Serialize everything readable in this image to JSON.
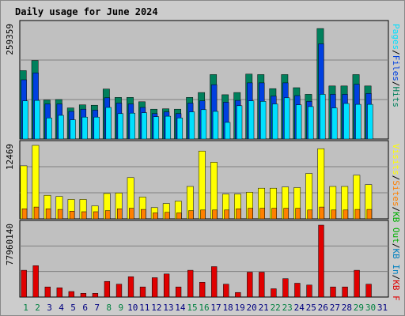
{
  "chart_data": {
    "type": "bar",
    "title": "Daily usage for June 2024",
    "categories": [
      "1",
      "2",
      "3",
      "4",
      "5",
      "6",
      "7",
      "8",
      "9",
      "10",
      "11",
      "12",
      "13",
      "14",
      "15",
      "16",
      "17",
      "18",
      "19",
      "20",
      "21",
      "22",
      "23",
      "24",
      "25",
      "26",
      "27",
      "28",
      "29",
      "30",
      "31"
    ],
    "weekend_days": [
      "1",
      "2",
      "8",
      "9",
      "15",
      "16",
      "22",
      "23",
      "29",
      "30"
    ],
    "colors": {
      "title": "#0000cc",
      "hits": "#00805c",
      "files": "#0040e0",
      "pages": "#00e0ff",
      "visits": "#ffff00",
      "sites": "#ff8000",
      "kb_in": "#0080c0",
      "kb_out": "#00b000",
      "kbytes": "#e00000",
      "weekday_label": "#000080",
      "weekend_label": "#008040",
      "plot_bg": "#c0c0c0",
      "frame_bg": "#cccccc",
      "grid": "#808080"
    },
    "panels": {
      "top": {
        "ymax_label": "259359",
        "ymax": 259359,
        "legend": [
          "Pages",
          "/",
          "Files",
          "/",
          "Hits"
        ],
        "series": [
          {
            "name": "Hits",
            "values": [
              156000,
              179000,
              89000,
              90000,
              71000,
              78000,
              77000,
              114000,
              95000,
              95000,
              85000,
              68000,
              69000,
              68000,
              95000,
              106000,
              147000,
              101000,
              106000,
              148000,
              147000,
              115000,
              147000,
              117000,
              102000,
              252000,
              121000,
              121000,
              147000,
              121000,
              0
            ]
          },
          {
            "name": "Files",
            "values": [
              135000,
              151000,
              80000,
              80000,
              63000,
              68000,
              66000,
              94000,
              82000,
              80000,
              72000,
              58000,
              62000,
              58000,
              82000,
              87000,
              124000,
              84000,
              88000,
              128000,
              128000,
              98000,
              128000,
              99000,
              86000,
              217000,
              102000,
              102000,
              125000,
              104000,
              0
            ]
          },
          {
            "name": "Pages",
            "values": [
              87000,
              88000,
              48000,
              54000,
              44000,
              50000,
              50000,
              72000,
              58000,
              59000,
              60000,
              51000,
              52000,
              48000,
              62000,
              67000,
              63000,
              38000,
              76000,
              87000,
              86000,
              80000,
              94000,
              78000,
              74000,
              102000,
              71000,
              81000,
              79000,
              79000,
              0
            ]
          }
        ]
      },
      "middle": {
        "ymax_label": "12469",
        "ymax": 12469,
        "legend": [
          "Visits",
          "/",
          "Sites",
          "/",
          "KB Out",
          "/",
          "KB In",
          "/",
          "KB F"
        ],
        "series": [
          {
            "name": "Visits",
            "values": [
              9000,
              12469,
              4000,
              3800,
              3300,
              3300,
              2200,
              4300,
              4400,
              7000,
              3700,
              1900,
              2600,
              3000,
              5500,
              11500,
              9600,
              4200,
              4200,
              4500,
              5200,
              5200,
              5400,
              5300,
              7700,
              11900,
              5500,
              5500,
              7400,
              5800,
              0
            ]
          },
          {
            "name": "Sites",
            "values": [
              1700,
              2000,
              1700,
              1600,
              1300,
              1200,
              1200,
              1400,
              1700,
              1800,
              1600,
              1000,
              1100,
              1000,
              1400,
              1500,
              1500,
              1500,
              1700,
              1800,
              1800,
              1800,
              1800,
              1800,
              1500,
              2000,
              1500,
              1500,
              1600,
              1600,
              0
            ]
          }
        ]
      },
      "bottom": {
        "ymax_label": "77960140",
        "ymax": 77960140,
        "series": [
          {
            "name": "KB F",
            "values": [
              29000000,
              34000000,
              11000000,
              10000000,
              6000000,
              4000000,
              4000000,
              17000000,
              14000000,
              22000000,
              11000000,
              21000000,
              25000000,
              11000000,
              29000000,
              16000000,
              33000000,
              14000000,
              5000000,
              27000000,
              27000000,
              9000000,
              20000000,
              15000000,
              13000000,
              77960140,
              11000000,
              11000000,
              29000000,
              14000000,
              0
            ]
          }
        ]
      }
    }
  }
}
